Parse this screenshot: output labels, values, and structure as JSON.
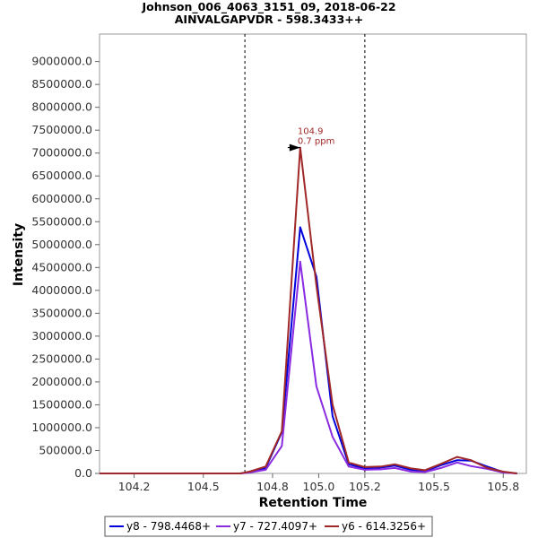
{
  "chart_data": {
    "type": "line",
    "title": "Johnson_006_4063_3151_09, 2018-06-22",
    "subtitle": "AINVALGAPVDR - 598.3433++",
    "xlabel": "Retention Time",
    "ylabel": "Intensity",
    "xlim": [
      104.05,
      105.9
    ],
    "ylim": [
      0,
      9600000
    ],
    "x_ticks": [
      "104.2",
      "104.5",
      "104.8",
      "105.0",
      "105.2",
      "105.5",
      "105.8"
    ],
    "x_tick_values": [
      104.2,
      104.5,
      104.8,
      105.0,
      105.2,
      105.5,
      105.8
    ],
    "y_ticks": [
      "0.0",
      "500000.0",
      "1000000.0",
      "1500000.0",
      "2000000.0",
      "2500000.0",
      "3000000.0",
      "3500000.0",
      "4000000.0",
      "4500000.0",
      "5000000.0",
      "5500000.0",
      "6000000.0",
      "6500000.0",
      "7000000.0",
      "7500000.0",
      "8000000.0",
      "8500000.0",
      "9000000.0"
    ],
    "y_tick_values": [
      0,
      500000,
      1000000,
      1500000,
      2000000,
      2500000,
      3000000,
      3500000,
      4000000,
      4500000,
      5000000,
      5500000,
      6000000,
      6500000,
      7000000,
      7500000,
      8000000,
      8500000,
      9000000
    ],
    "integration_boundaries": [
      104.68,
      105.2
    ],
    "grid": false,
    "legend_position": "bottom",
    "annotation": {
      "x": 104.92,
      "y": 7120000,
      "line1": "104.9",
      "line2": "0.7 ppm",
      "color": "#a02828"
    },
    "x": [
      104.05,
      104.1,
      104.2,
      104.3,
      104.4,
      104.5,
      104.6,
      104.66,
      104.7,
      104.77,
      104.84,
      104.92,
      104.99,
      105.06,
      105.13,
      105.2,
      105.27,
      105.33,
      105.4,
      105.46,
      105.53,
      105.6,
      105.66,
      105.73,
      105.8,
      105.86
    ],
    "series": [
      {
        "name": "y8 - 798.4468+",
        "color": "#0000dd",
        "values": [
          0,
          0,
          0,
          0,
          0,
          0,
          0,
          0,
          30000,
          120000,
          900000,
          5380000,
          4300000,
          1250000,
          200000,
          110000,
          130000,
          170000,
          80000,
          50000,
          180000,
          290000,
          280000,
          150000,
          30000,
          0
        ]
      },
      {
        "name": "y7 - 727.4097+",
        "color": "#8a2be2",
        "values": [
          0,
          0,
          0,
          0,
          0,
          0,
          0,
          0,
          20000,
          80000,
          600000,
          4630000,
          1900000,
          800000,
          150000,
          80000,
          90000,
          120000,
          40000,
          30000,
          120000,
          240000,
          160000,
          100000,
          20000,
          0
        ]
      },
      {
        "name": "y6 - 614.3256+",
        "color": "#a02828",
        "values": [
          0,
          0,
          0,
          0,
          0,
          0,
          0,
          0,
          40000,
          150000,
          920000,
          7120000,
          4100000,
          1500000,
          240000,
          140000,
          150000,
          200000,
          110000,
          70000,
          210000,
          360000,
          290000,
          120000,
          40000,
          0
        ]
      }
    ]
  }
}
